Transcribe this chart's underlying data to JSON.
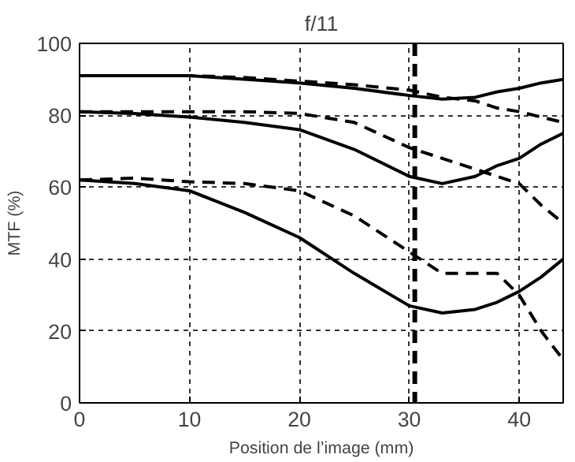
{
  "chart_data": {
    "type": "line",
    "title": "f/11",
    "xlabel": "Position de l’image (mm)",
    "ylabel": "MTF (%)",
    "xlim": [
      0,
      44
    ],
    "ylim": [
      0,
      100
    ],
    "xticks": [
      0,
      10,
      20,
      30,
      40
    ],
    "yticks": [
      0,
      20,
      40,
      60,
      80,
      100
    ],
    "grid": true,
    "marker": "none",
    "x": [
      0,
      5,
      10,
      15,
      20,
      25,
      30,
      33,
      36,
      38,
      40,
      42,
      44
    ],
    "series": [
      {
        "color": "#000000",
        "line_style": "solid",
        "values": [
          91,
          91,
          91,
          90,
          89,
          87.5,
          85.5,
          84.5,
          85,
          86.5,
          87.5,
          89,
          90
        ]
      },
      {
        "color": "#000000",
        "line_style": "dashed",
        "values": [
          91,
          91,
          91,
          90.5,
          89.5,
          88.5,
          87,
          85,
          84,
          82,
          81,
          79.5,
          78
        ]
      },
      {
        "color": "#000000",
        "line_style": "solid",
        "values": [
          81,
          80.5,
          79.5,
          78,
          76,
          70.5,
          63,
          61,
          63,
          66,
          68,
          72,
          75
        ]
      },
      {
        "color": "#000000",
        "line_style": "dashed",
        "values": [
          81,
          81,
          81,
          81,
          80.5,
          78,
          71,
          68,
          65,
          63,
          61,
          55,
          50
        ]
      },
      {
        "color": "#000000",
        "line_style": "solid",
        "values": [
          62,
          61,
          59,
          53,
          46,
          36,
          27,
          25,
          26,
          28,
          31,
          35,
          40
        ]
      },
      {
        "color": "#000000",
        "line_style": "dashed",
        "values": [
          62,
          62.5,
          61.5,
          61,
          59,
          52,
          42,
          36,
          36,
          36,
          30,
          20,
          12
        ]
      }
    ],
    "ref_lines": [
      {
        "axis": "x",
        "value": 30.5,
        "color": "#000000",
        "line_style": "dashed"
      }
    ]
  }
}
